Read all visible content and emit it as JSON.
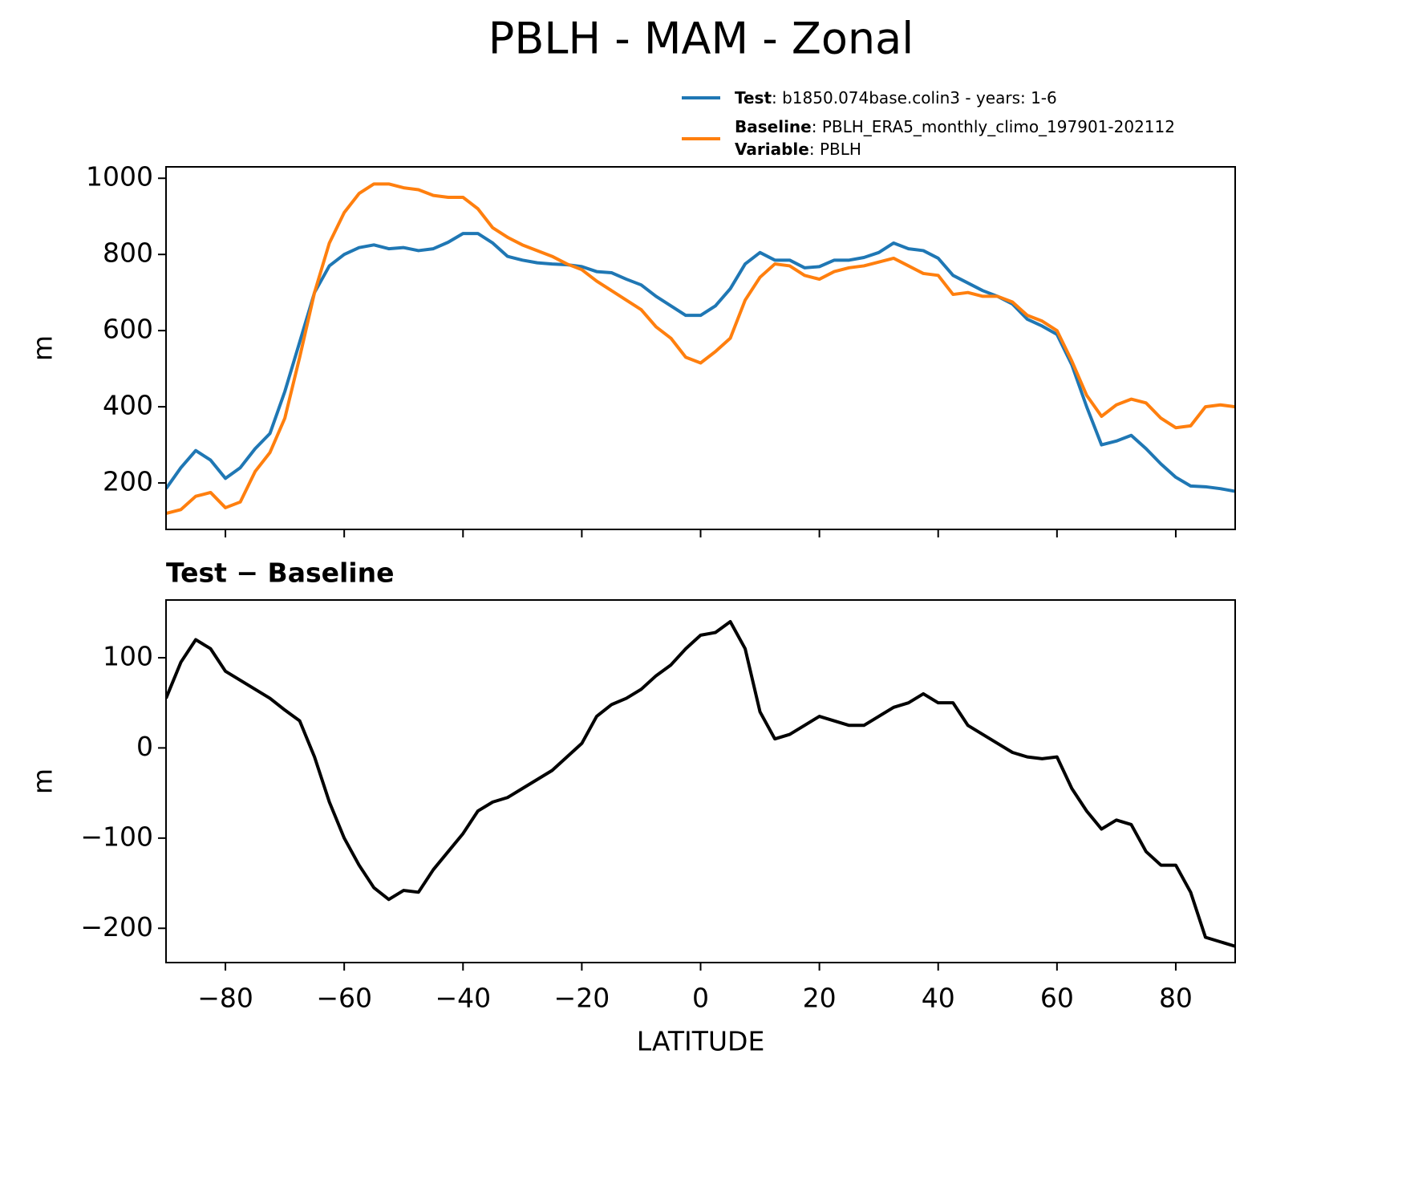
{
  "chart_data": [
    {
      "type": "line",
      "title": "PBLH - MAM - Zonal",
      "ylabel": "m",
      "x": [
        -90,
        -87.5,
        -85,
        -82.5,
        -80,
        -77.5,
        -75,
        -72.5,
        -70,
        -67.5,
        -65,
        -62.5,
        -60,
        -57.5,
        -55,
        -52.5,
        -50,
        -47.5,
        -45,
        -42.5,
        -40,
        -37.5,
        -35,
        -32.5,
        -30,
        -27.5,
        -25,
        -22.5,
        -20,
        -17.5,
        -15,
        -12.5,
        -10,
        -7.5,
        -5,
        -2.5,
        0,
        2.5,
        5,
        7.5,
        10,
        12.5,
        15,
        17.5,
        20,
        22.5,
        25,
        27.5,
        30,
        32.5,
        35,
        37.5,
        40,
        42.5,
        45,
        47.5,
        50,
        52.5,
        55,
        57.5,
        60,
        62.5,
        65,
        67.5,
        70,
        72.5,
        75,
        77.5,
        80,
        82.5,
        85,
        87.5,
        90
      ],
      "series": [
        {
          "name": "Test",
          "description": ": b1850.074base.colin3 - years: 1-6",
          "color": "#1f77b4",
          "values": [
            185,
            240,
            285,
            260,
            212,
            240,
            290,
            330,
            440,
            570,
            700,
            770,
            800,
            818,
            825,
            815,
            818,
            810,
            815,
            832,
            855,
            855,
            830,
            795,
            785,
            778,
            775,
            773,
            768,
            755,
            752,
            735,
            720,
            690,
            665,
            640,
            640,
            665,
            710,
            775,
            805,
            785,
            785,
            765,
            768,
            785,
            785,
            792,
            805,
            830,
            815,
            810,
            790,
            745,
            725,
            705,
            690,
            670,
            630,
            612,
            590,
            510,
            400,
            300,
            310,
            325,
            290,
            250,
            215,
            192,
            190,
            185,
            178
          ]
        },
        {
          "name": "Baseline",
          "description": ": PBLH_ERA5_monthly_climo_197901-202112",
          "color": "#ff7f0e",
          "values": [
            120,
            130,
            165,
            175,
            135,
            150,
            230,
            280,
            370,
            530,
            700,
            830,
            910,
            960,
            985,
            985,
            975,
            970,
            955,
            950,
            950,
            920,
            870,
            845,
            825,
            810,
            795,
            775,
            760,
            730,
            705,
            680,
            655,
            610,
            580,
            530,
            515,
            545,
            580,
            680,
            740,
            775,
            770,
            745,
            735,
            755,
            765,
            770,
            780,
            790,
            770,
            750,
            745,
            695,
            700,
            690,
            690,
            675,
            640,
            625,
            600,
            520,
            430,
            375,
            405,
            420,
            410,
            370,
            345,
            350,
            400,
            405,
            400
          ]
        }
      ],
      "legend_extra": {
        "name": "Variable",
        "description": ": PBLH"
      },
      "xlim": [
        -90,
        90
      ],
      "xticks": [
        -80,
        -60,
        -40,
        -20,
        0,
        20,
        40,
        60,
        80
      ],
      "ylim": [
        78,
        1030
      ],
      "yticks": [
        200,
        400,
        600,
        800,
        1000
      ],
      "grid": false
    },
    {
      "type": "line",
      "subtitle": "Test − Baseline",
      "ylabel": "m",
      "xlabel": "LATITUDE",
      "x": [
        -90,
        -87.5,
        -85,
        -82.5,
        -80,
        -77.5,
        -75,
        -72.5,
        -70,
        -67.5,
        -65,
        -62.5,
        -60,
        -57.5,
        -55,
        -52.5,
        -50,
        -47.5,
        -45,
        -42.5,
        -40,
        -37.5,
        -35,
        -32.5,
        -30,
        -27.5,
        -25,
        -22.5,
        -20,
        -17.5,
        -15,
        -12.5,
        -10,
        -7.5,
        -5,
        -2.5,
        0,
        2.5,
        5,
        7.5,
        10,
        12.5,
        15,
        17.5,
        20,
        22.5,
        25,
        27.5,
        30,
        32.5,
        35,
        37.5,
        40,
        42.5,
        45,
        47.5,
        50,
        52.5,
        55,
        57.5,
        60,
        62.5,
        65,
        67.5,
        70,
        72.5,
        75,
        77.5,
        80,
        82.5,
        85,
        87.5,
        90
      ],
      "series": [
        {
          "color": "#000000",
          "values": [
            55,
            95,
            120,
            110,
            85,
            75,
            65,
            55,
            42,
            30,
            -10,
            -60,
            -100,
            -130,
            -155,
            -168,
            -158,
            -160,
            -135,
            -115,
            -95,
            -70,
            -60,
            -55,
            -45,
            -35,
            -25,
            -10,
            5,
            35,
            48,
            55,
            65,
            80,
            92,
            110,
            125,
            128,
            140,
            110,
            40,
            10,
            15,
            25,
            35,
            30,
            25,
            25,
            35,
            45,
            50,
            60,
            50,
            50,
            25,
            15,
            5,
            -5,
            -10,
            -12,
            -10,
            -45,
            -70,
            -90,
            -80,
            -85,
            -115,
            -130,
            -130,
            -160,
            -210,
            -215,
            -220
          ]
        }
      ],
      "xlim": [
        -90,
        90
      ],
      "xticks": [
        {
          "value": -80,
          "label": "−80"
        },
        {
          "value": -60,
          "label": "−60"
        },
        {
          "value": -40,
          "label": "−40"
        },
        {
          "value": -20,
          "label": "−20"
        },
        0,
        20,
        40,
        60,
        80
      ],
      "ylim": [
        -238,
        164
      ],
      "yticks": [
        {
          "value": -200,
          "label": "−200"
        },
        {
          "value": -100,
          "label": "−100"
        },
        0,
        100
      ],
      "grid": false
    }
  ]
}
